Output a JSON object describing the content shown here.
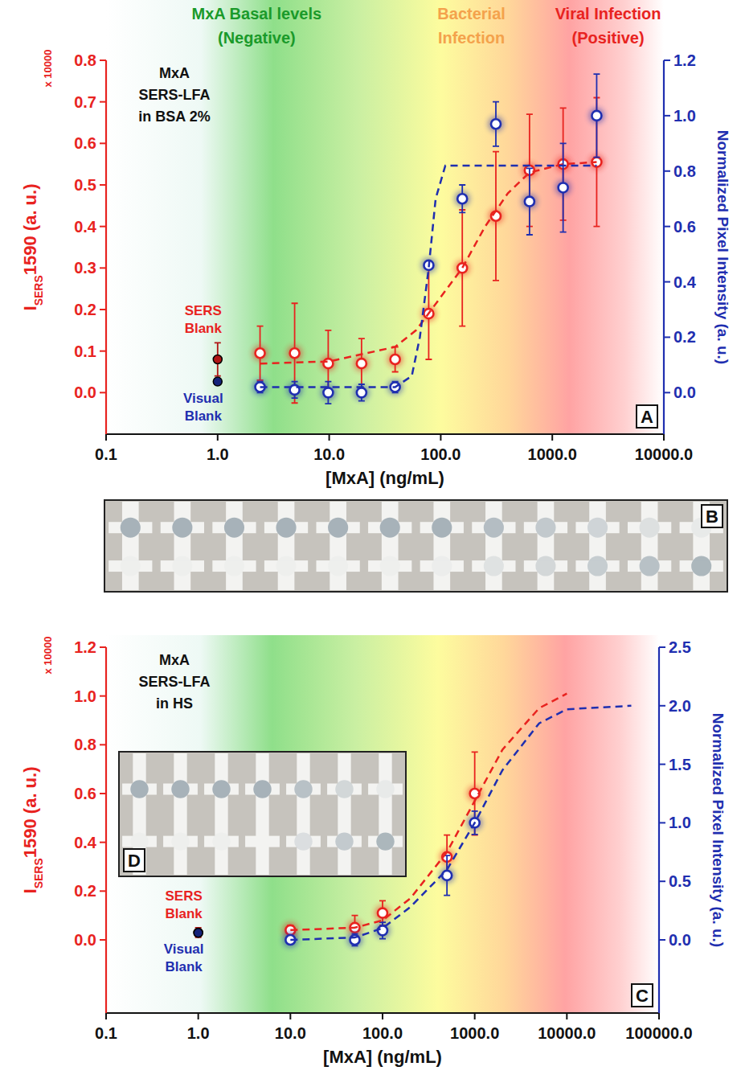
{
  "chart_data": [
    {
      "type": "scatter",
      "panel": "A",
      "title": [
        "MxA",
        "SERS-LFA",
        "in BSA 2%"
      ],
      "xlabel": "[MxA] (ng/mL)",
      "ylabel": [
        {
          "text": "I"
        },
        {
          "text": "SERS",
          "sub": true
        },
        {
          "text": "1590 (a. u.)"
        }
      ],
      "ylabel_note": "x 10000",
      "y2label": "Normalized Pixel Intensity (a. u.)",
      "log": "x",
      "xlim": [
        0.1,
        10000
      ],
      "xticks": [
        0.1,
        {
          "value": 1,
          "label": "1.0"
        },
        {
          "value": 10,
          "label": "10.0"
        },
        {
          "value": 100,
          "label": "100.0"
        },
        {
          "value": 1000,
          "label": "1000.0"
        },
        {
          "value": 10000,
          "label": "10000.0"
        }
      ],
      "ylim": [
        -0.1,
        0.8
      ],
      "yticks": [
        {
          "value": 0,
          "label": "0.0"
        },
        0.1,
        0.2,
        0.3,
        0.4,
        0.5,
        0.6,
        0.7,
        0.8
      ],
      "y2lim": [
        -0.15,
        1.2
      ],
      "y2ticks": [
        {
          "value": 0,
          "label": "0.0"
        },
        0.2,
        0.4,
        0.6,
        0.8,
        {
          "value": 1,
          "label": "1.0"
        },
        1.2
      ],
      "zones": [
        {
          "text": [
            "MxA Basal levels",
            "(Negative)"
          ],
          "color": "#1a9a2a"
        },
        {
          "text": [
            "Bacterial",
            "Infection"
          ],
          "color": "#f4a24c"
        },
        {
          "text": [
            "Viral Infection",
            "(Positive)"
          ],
          "color": "#e8231f"
        }
      ],
      "annotations": [
        {
          "text": [
            "SERS",
            "Blank"
          ],
          "color": "#e8231f"
        },
        {
          "text": [
            "Visual",
            "Blank"
          ],
          "color": "#1f2fb0"
        }
      ],
      "series": [
        {
          "type": "scatter",
          "marker": "circle",
          "color": "#e8231f",
          "x": [
            2.4,
            4.9,
            9.8,
            19.5,
            39,
            78,
            156,
            312,
            625,
            1250,
            2500
          ],
          "values": [
            0.095,
            0.095,
            0.07,
            0.07,
            0.08,
            0.19,
            0.3,
            0.425,
            0.535,
            0.55,
            0.555
          ],
          "errors": [
            0.065,
            0.12,
            0.08,
            0.06,
            0.03,
            0.11,
            0.14,
            0.155,
            0.135,
            0.135,
            0.155
          ]
        },
        {
          "type": "scatter",
          "marker": "circle",
          "color": "#1f2fb0",
          "axis": "y2",
          "x": [
            2.4,
            4.9,
            9.8,
            19.5,
            39,
            78,
            156,
            312,
            625,
            1250,
            2500
          ],
          "values": [
            0.02,
            0.01,
            0.0,
            0.0,
            0.02,
            0.46,
            0.7,
            0.97,
            0.69,
            0.74,
            1.0
          ],
          "errors": [
            0.02,
            0.03,
            0.04,
            0.03,
            0.02,
            0.0,
            0.05,
            0.08,
            0.12,
            0.16,
            0.15
          ]
        },
        {
          "type": "line",
          "line_style": "dashed",
          "color": "#e8231f",
          "x": [
            2.4,
            10,
            39,
            60,
            100,
            156,
            250,
            400,
            625,
            1250,
            2500
          ],
          "values": [
            0.07,
            0.075,
            0.11,
            0.15,
            0.23,
            0.3,
            0.4,
            0.48,
            0.53,
            0.55,
            0.555
          ]
        },
        {
          "type": "line",
          "line_style": "dashed",
          "color": "#1f2fb0",
          "axis": "y2",
          "x": [
            2.4,
            39,
            55,
            65,
            78,
            90,
            110,
            2500
          ],
          "values": [
            0.02,
            0.02,
            0.06,
            0.2,
            0.45,
            0.7,
            0.82,
            0.82
          ]
        },
        {
          "type": "scatter",
          "marker": "dot",
          "color": "#b01515",
          "x": [
            1
          ],
          "values": [
            0.08
          ],
          "errors": [
            0.04
          ]
        },
        {
          "type": "scatter",
          "marker": "dot",
          "color": "#14237a",
          "axis": "y2",
          "x": [
            1
          ],
          "values": [
            0.04
          ]
        }
      ]
    },
    {
      "type": "scatter",
      "panel": "C",
      "title": [
        "MxA",
        "SERS-LFA",
        "in HS"
      ],
      "xlabel": "[MxA] (ng/mL)",
      "ylabel": [
        {
          "text": "I"
        },
        {
          "text": "SERS",
          "sub": true
        },
        {
          "text": "1590 (a. u.)"
        }
      ],
      "ylabel_note": "x 10000",
      "y2label": "Normalized Pixel Intensity (a. u.)",
      "log": "x",
      "xlim": [
        0.1,
        100000
      ],
      "xticks": [
        0.1,
        {
          "value": 1,
          "label": "1.0"
        },
        {
          "value": 10,
          "label": "10.0"
        },
        {
          "value": 100,
          "label": "100.0"
        },
        {
          "value": 1000,
          "label": "1000.0"
        },
        {
          "value": 10000,
          "label": "10000.0"
        },
        {
          "value": 100000,
          "label": "100000.0"
        }
      ],
      "ylim": [
        -0.3,
        1.2
      ],
      "yticks": [
        {
          "value": 0,
          "label": "0.0"
        },
        0.2,
        0.4,
        0.6,
        0.8,
        {
          "value": 1,
          "label": "1.0"
        },
        1.2
      ],
      "y2lim": [
        -0.625,
        2.5
      ],
      "y2ticks": [
        {
          "value": 0,
          "label": "0.0"
        },
        0.5,
        {
          "value": 1,
          "label": "1.0"
        },
        1.5,
        {
          "value": 2,
          "label": "2.0"
        },
        2.5
      ],
      "annotations": [
        {
          "text": [
            "SERS",
            "Blank"
          ],
          "color": "#e8231f"
        },
        {
          "text": [
            "Visual",
            "Blank"
          ],
          "color": "#1f2fb0"
        }
      ],
      "series": [
        {
          "type": "scatter",
          "marker": "circle",
          "color": "#e8231f",
          "x": [
            10,
            50,
            100,
            500,
            1000
          ],
          "values": [
            0.04,
            0.05,
            0.11,
            0.34,
            0.6
          ],
          "errors": [
            0.02,
            0.05,
            0.05,
            0.09,
            0.17
          ]
        },
        {
          "type": "scatter",
          "marker": "circle",
          "color": "#1f2fb0",
          "axis": "y2",
          "x": [
            10,
            50,
            100,
            500,
            1000
          ],
          "values": [
            0.0,
            0.0,
            0.08,
            0.55,
            1.0
          ],
          "errors": [
            0.03,
            0.05,
            0.07,
            0.17,
            0.1
          ]
        },
        {
          "type": "line",
          "line_style": "dashed",
          "color": "#e8231f",
          "x": [
            10,
            50,
            100,
            200,
            500,
            1000,
            2000,
            5000,
            10000
          ],
          "values": [
            0.04,
            0.05,
            0.08,
            0.17,
            0.36,
            0.57,
            0.78,
            0.95,
            1.01
          ]
        },
        {
          "type": "line",
          "line_style": "dashed",
          "color": "#1f2fb0",
          "axis": "y2",
          "x": [
            10,
            50,
            100,
            200,
            500,
            1000,
            2000,
            5000,
            10000,
            50000
          ],
          "values": [
            0.0,
            0.02,
            0.1,
            0.28,
            0.6,
            1.0,
            1.45,
            1.85,
            1.97,
            2.0
          ]
        },
        {
          "type": "scatter",
          "marker": "dot",
          "color": "#b01515",
          "x": [
            1
          ],
          "values": [
            0.03
          ],
          "errors": [
            0.02
          ]
        },
        {
          "type": "scatter",
          "marker": "dot",
          "color": "#14237a",
          "axis": "y2",
          "x": [
            1
          ],
          "values": [
            0.06
          ]
        }
      ]
    }
  ],
  "photos": [
    {
      "label": "B",
      "strips": 12
    },
    {
      "label": "D",
      "strips": 7
    }
  ]
}
